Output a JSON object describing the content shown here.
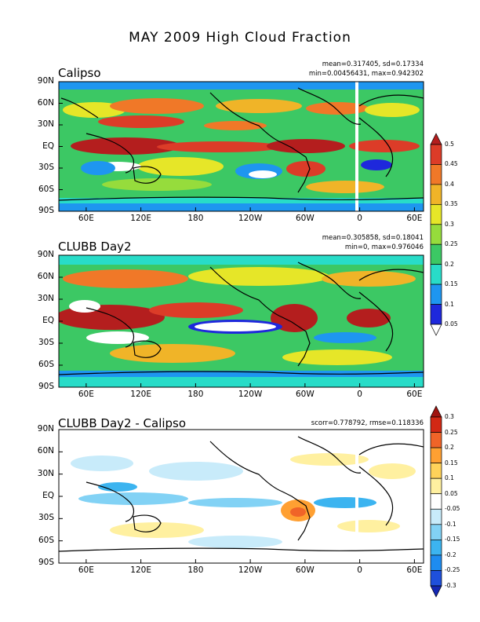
{
  "title": "MAY 2009 High Cloud Fraction",
  "chart_data": [
    {
      "type": "heatmap",
      "title": "Calipso",
      "stats_line1": "mean=0.317405, sd=0.17334",
      "stats_line2": "min=0.00456431, max=0.942302",
      "mean": 0.317405,
      "sd": 0.17334,
      "min": 0.00456431,
      "max": 0.942302,
      "yticks": [
        "90N",
        "60N",
        "30N",
        "EQ",
        "30S",
        "60S",
        "90S"
      ],
      "xticks": [
        "60E",
        "120E",
        "180",
        "120W",
        "60W",
        "0",
        "60E"
      ],
      "zlim": [
        0.05,
        0.5
      ]
    },
    {
      "type": "heatmap",
      "title": "CLUBB Day2",
      "stats_line1": "mean=0.305858, sd=0.18041",
      "stats_line2": "min=0, max=0.976046",
      "mean": 0.305858,
      "sd": 0.18041,
      "min": 0,
      "max": 0.976046,
      "yticks": [
        "90N",
        "60N",
        "30N",
        "EQ",
        "30S",
        "60S",
        "90S"
      ],
      "xticks": [
        "60E",
        "120E",
        "180",
        "120W",
        "60W",
        "0",
        "60E"
      ],
      "zlim": [
        0.05,
        0.5
      ]
    },
    {
      "type": "heatmap",
      "title": "CLUBB Day2 - Calipso",
      "stats_line1": "scorr=0.778792, rmse=0.118336",
      "scorr": 0.778792,
      "rmse": 0.118336,
      "yticks": [
        "90N",
        "60N",
        "30N",
        "EQ",
        "30S",
        "60S",
        "90S"
      ],
      "xticks": [
        "60E",
        "120E",
        "180",
        "120W",
        "60W",
        "0",
        "60E"
      ],
      "zlim": [
        -0.3,
        0.3
      ]
    }
  ],
  "colorbar_top": {
    "labels": [
      "0.5",
      "0.45",
      "0.4",
      "0.35",
      "0.3",
      "0.25",
      "0.2",
      "0.15",
      "0.1",
      "0.05"
    ],
    "colors": [
      "#ffffff",
      "#1e28dc",
      "#1e96f0",
      "#28dcc8",
      "#3cc864",
      "#96dc3c",
      "#e6e628",
      "#f0b428",
      "#f07828",
      "#dc3c28",
      "#b41e1e"
    ]
  },
  "colorbar_bottom": {
    "labels": [
      "0.3",
      "0.25",
      "0.2",
      "0.15",
      "0.1",
      "0.05",
      "-0.05",
      "-0.1",
      "-0.15",
      "-0.2",
      "-0.25",
      "-0.3"
    ],
    "colors": [
      "#1428b4",
      "#1e50dc",
      "#1e8cf0",
      "#3cb4f0",
      "#82d2f5",
      "#c8ebfa",
      "#ffffff",
      "#fff0a0",
      "#ffd25a",
      "#ffa032",
      "#f06428",
      "#d22814",
      "#a01410"
    ]
  }
}
